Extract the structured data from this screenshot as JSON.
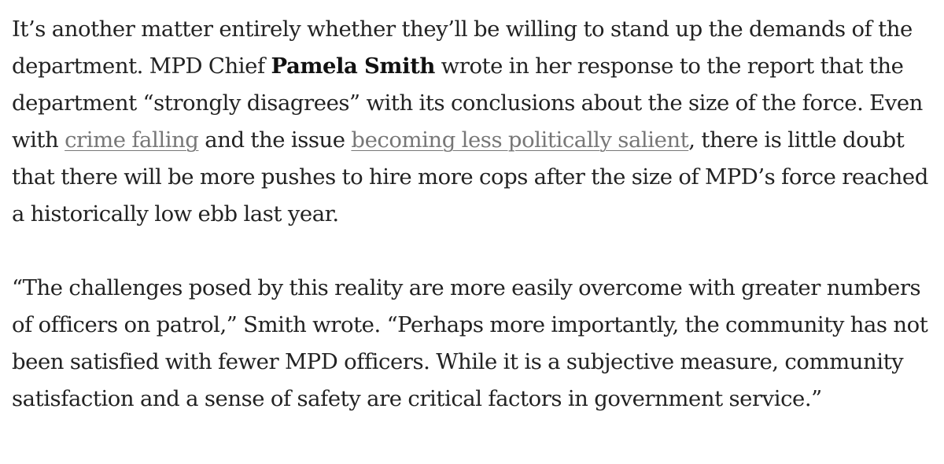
{
  "article": {
    "paragraph1": {
      "text_a": "It’s another matter entirely whether they’ll be willing to stand up the demands of the department. MPD Chief ",
      "bold_name": "Pamela Smith",
      "text_b": " wrote in her response to the report that the department “strongly disagrees” with its conclusions about the size of the force. Even with ",
      "link1": "crime falling",
      "text_c": " and the issue ",
      "link2": "becoming less politically salient",
      "text_d": ", there is little doubt that there will be more pushes to hire more cops after the size of MPD’s force reached a historically low ebb last year."
    },
    "paragraph2": {
      "text": "“The challenges posed by this reality are more easily overcome with greater numbers of officers on patrol,” Smith wrote. “Perhaps more importantly, the community has not been satisfied with fewer MPD officers. While it is a subjective measure, community satisfaction and a sense of safety are critical factors in government service.”"
    }
  }
}
